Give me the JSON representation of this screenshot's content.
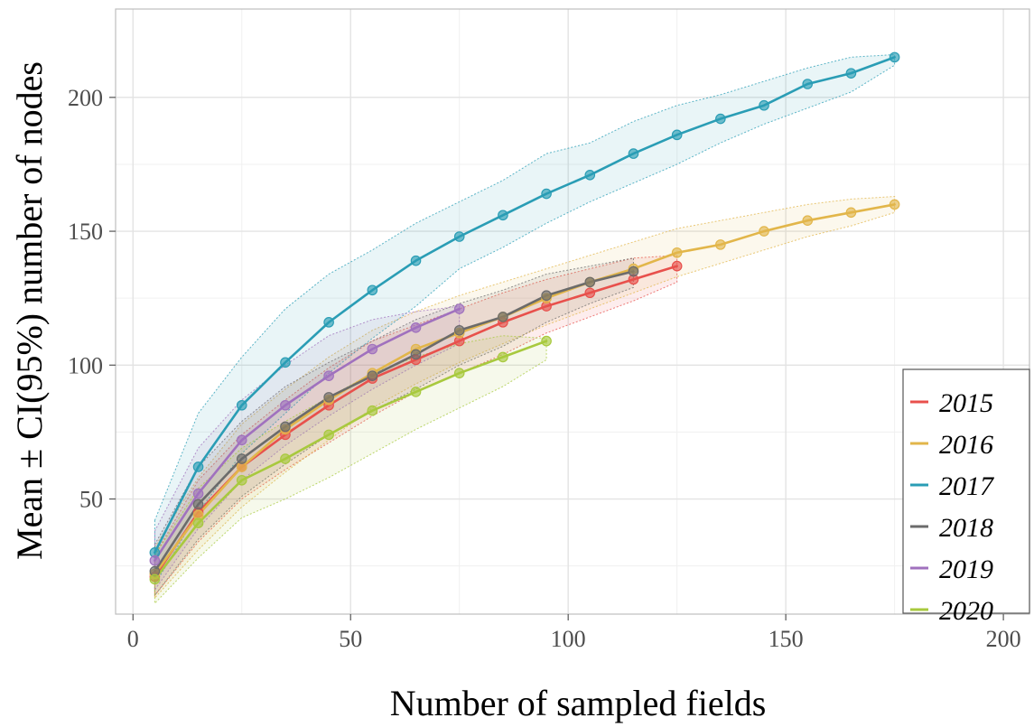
{
  "chart_data": {
    "type": "line",
    "xlabel": "Number of sampled fields",
    "ylabel": "Mean ± CI(95%) number of nodes",
    "xlim": [
      -4,
      206
    ],
    "ylim": [
      7,
      233
    ],
    "x_ticks": [
      0,
      50,
      100,
      150,
      200
    ],
    "y_ticks": [
      50,
      100,
      150,
      200
    ],
    "grid": true,
    "legend_position": "bottom-right",
    "series": [
      {
        "name": "2015",
        "color": "#E8504C",
        "x": [
          5,
          15,
          25,
          35,
          45,
          55,
          65,
          75,
          85,
          95,
          105,
          115,
          125
        ],
        "y": [
          21,
          45,
          62,
          74,
          85,
          95,
          102,
          109,
          116,
          122,
          127,
          132,
          137
        ],
        "lower": [
          14,
          34,
          50,
          61,
          71,
          81,
          90,
          97,
          104,
          112,
          118,
          124,
          131
        ],
        "upper": [
          29,
          57,
          74,
          87,
          99,
          109,
          115,
          121,
          127,
          132,
          136,
          140,
          141
        ]
      },
      {
        "name": "2016",
        "color": "#E2B64A",
        "x": [
          5,
          15,
          25,
          35,
          45,
          55,
          65,
          75,
          85,
          95,
          105,
          115,
          125,
          135,
          145,
          155,
          165,
          175
        ],
        "y": [
          22,
          44,
          62,
          76,
          87,
          97,
          106,
          112,
          118,
          125,
          131,
          136,
          142,
          145,
          150,
          154,
          157,
          160
        ],
        "lower": [
          13,
          31,
          47,
          60,
          72,
          84,
          93,
          101,
          108,
          115,
          121,
          127,
          133,
          138,
          143,
          148,
          152,
          157
        ],
        "upper": [
          32,
          58,
          78,
          91,
          103,
          113,
          120,
          126,
          131,
          136,
          141,
          146,
          151,
          154,
          157,
          160,
          162,
          163
        ]
      },
      {
        "name": "2017",
        "color": "#2A9DB5",
        "x": [
          5,
          15,
          25,
          35,
          45,
          55,
          65,
          75,
          85,
          95,
          105,
          115,
          125,
          135,
          145,
          155,
          165,
          175
        ],
        "y": [
          30,
          62,
          85,
          101,
          116,
          128,
          139,
          148,
          156,
          164,
          171,
          179,
          186,
          192,
          197,
          205,
          209,
          215
        ],
        "lower": [
          18,
          45,
          67,
          82,
          97,
          110,
          122,
          136,
          144,
          153,
          161,
          168,
          175,
          183,
          190,
          196,
          202,
          212
        ],
        "upper": [
          42,
          82,
          103,
          121,
          134,
          143,
          153,
          161,
          169,
          179,
          183,
          191,
          197,
          201,
          206,
          211,
          215,
          216
        ]
      },
      {
        "name": "2018",
        "color": "#6B6B6B",
        "x": [
          5,
          15,
          25,
          35,
          45,
          55,
          65,
          75,
          85,
          95,
          105,
          115
        ],
        "y": [
          23,
          48,
          65,
          77,
          88,
          96,
          104,
          113,
          118,
          126,
          131,
          135
        ],
        "lower": [
          14,
          35,
          51,
          63,
          74,
          83,
          91,
          100,
          107,
          116,
          123,
          129
        ],
        "upper": [
          33,
          62,
          79,
          92,
          101,
          109,
          117,
          123,
          128,
          134,
          137,
          140
        ]
      },
      {
        "name": "2019",
        "color": "#A071BE",
        "x": [
          5,
          15,
          25,
          35,
          45,
          55,
          65,
          75
        ],
        "y": [
          27,
          52,
          72,
          85,
          96,
          106,
          114,
          121
        ],
        "lower": [
          16,
          39,
          57,
          70,
          81,
          91,
          100,
          108
        ],
        "upper": [
          38,
          69,
          87,
          100,
          111,
          117,
          120,
          122
        ]
      },
      {
        "name": "2020",
        "color": "#A8C93E",
        "x": [
          5,
          15,
          25,
          35,
          45,
          55,
          65,
          75,
          85,
          95
        ],
        "y": [
          20,
          41,
          57,
          65,
          74,
          83,
          90,
          97,
          103,
          109
        ],
        "lower": [
          11,
          28,
          43,
          50,
          58,
          67,
          76,
          84,
          92,
          102
        ],
        "upper": [
          29,
          54,
          69,
          79,
          88,
          97,
          103,
          108,
          111,
          110
        ]
      }
    ]
  }
}
